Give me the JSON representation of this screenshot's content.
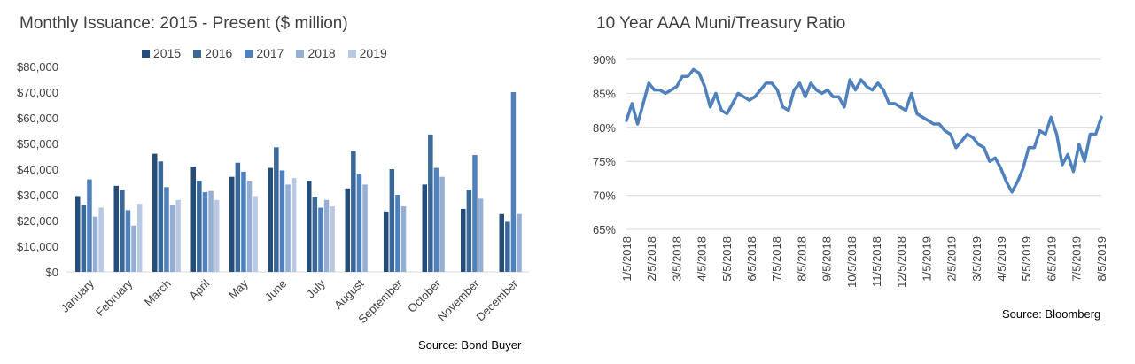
{
  "chart_data": [
    {
      "type": "bar",
      "title": "Monthly Issuance: 2015 - Present ($ million)",
      "categories": [
        "January",
        "February",
        "March",
        "April",
        "May",
        "June",
        "July",
        "August",
        "September",
        "October",
        "November",
        "December"
      ],
      "series": [
        {
          "name": "2015",
          "color": "#254d7a",
          "values": [
            29500,
            33500,
            46000,
            41000,
            37000,
            40500,
            35500,
            32500,
            23500,
            34000,
            24500,
            22500
          ]
        },
        {
          "name": "2016",
          "color": "#3a6899",
          "values": [
            26000,
            32000,
            43000,
            35500,
            42500,
            48500,
            29000,
            47000,
            40000,
            53500,
            32000,
            19500
          ]
        },
        {
          "name": "2017",
          "color": "#4f81bd",
          "values": [
            36000,
            24000,
            33000,
            31000,
            39000,
            39500,
            25000,
            38000,
            30000,
            40500,
            45500,
            70000
          ]
        },
        {
          "name": "2018",
          "color": "#95aed4",
          "values": [
            21500,
            18000,
            26000,
            31500,
            35500,
            34000,
            28000,
            34000,
            25500,
            37000,
            28500,
            22500
          ]
        },
        {
          "name": "2019",
          "color": "#b9c9e3",
          "values": [
            25000,
            26500,
            28000,
            28000,
            29500,
            36500,
            25500,
            null,
            null,
            null,
            null,
            null
          ]
        }
      ],
      "ylim": [
        0,
        80000
      ],
      "yticks": [
        "$0",
        "$10,000",
        "$20,000",
        "$30,000",
        "$40,000",
        "$50,000",
        "$60,000",
        "$70,000",
        "$80,000"
      ],
      "grid": false,
      "legend_position": "top",
      "source": "Source:  Bond Buyer"
    },
    {
      "type": "line",
      "title": "10 Year AAA Muni/Treasury Ratio",
      "series": [
        {
          "name": "",
          "color": "#4f81bd",
          "values": [
            81,
            83.5,
            80.5,
            83.5,
            86.5,
            85.5,
            85.5,
            85,
            85.5,
            86,
            87.5,
            87.5,
            88.5,
            88,
            86,
            83,
            85,
            82.5,
            82,
            83.5,
            85,
            84.5,
            84,
            84.5,
            85.5,
            86.5,
            86.5,
            85.5,
            83,
            82.5,
            85.5,
            86.5,
            84.5,
            86.5,
            85.5,
            85,
            85.5,
            84.5,
            84.5,
            83,
            87,
            85.5,
            87,
            86,
            85.5,
            86.5,
            85.5,
            83.5,
            83.5,
            83,
            82.5,
            85,
            82,
            81.5,
            81,
            80.5,
            80.5,
            79.5,
            79,
            77,
            78,
            79,
            78.5,
            77.5,
            77,
            75,
            75.5,
            74,
            72,
            70.5,
            72,
            74,
            77,
            77,
            79.5,
            79,
            81.5,
            79,
            74.5,
            76,
            73.5,
            77.5,
            75,
            79,
            79,
            81.5
          ]
        }
      ],
      "xticks": [
        "1/5/2018",
        "2/5/2018",
        "3/5/2018",
        "4/5/2018",
        "5/5/2018",
        "6/5/2018",
        "7/5/2018",
        "8/5/2018",
        "9/5/2018",
        "10/5/2018",
        "11/5/2018",
        "12/5/2018",
        "1/5/2019",
        "2/5/2019",
        "3/5/2019",
        "4/5/2019",
        "5/5/2019",
        "6/5/2019",
        "7/5/2019",
        "8/5/2019"
      ],
      "yticks": [
        "65%",
        "70%",
        "75%",
        "80%",
        "85%",
        "90%"
      ],
      "ylim": [
        65,
        90
      ],
      "grid": true,
      "source": "Source:  Bloomberg"
    }
  ]
}
